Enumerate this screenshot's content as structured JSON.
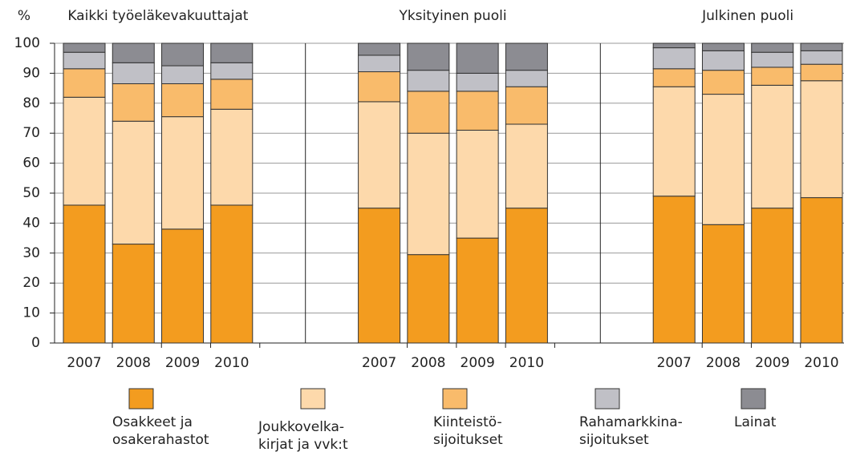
{
  "chart_data": {
    "type": "stacked_bar",
    "ylabel": "%",
    "group_titles": [
      "Kaikki työeläkevakuuttajat",
      "Yksityinen puoli",
      "Julkinen puoli"
    ],
    "categories": [
      "2007",
      "2008",
      "2009",
      "2010",
      null,
      null,
      "2007",
      "2008",
      "2009",
      "2010",
      null,
      null,
      "2007",
      "2008",
      "2009",
      "2010"
    ],
    "series": [
      {
        "name": "Osakkeet ja\nosakerahastot",
        "color": "#f39c1f",
        "values": [
          46,
          33,
          38,
          46,
          null,
          null,
          45,
          29.5,
          35,
          45,
          null,
          null,
          49,
          39.5,
          45,
          48.5
        ]
      },
      {
        "name": "Joukkovelka-\nkirjat ja vvk:t",
        "color": "#fdd9ab",
        "values": [
          36,
          41,
          37.5,
          32,
          null,
          null,
          35.5,
          40.5,
          36,
          28,
          null,
          null,
          36.5,
          43.5,
          41,
          39
        ]
      },
      {
        "name": "Kiinteistö-\nsijoitukset",
        "color": "#f9bb6b",
        "values": [
          9.5,
          12.5,
          11,
          10,
          null,
          null,
          10,
          14,
          13,
          12.5,
          null,
          null,
          6,
          8,
          6,
          5.5
        ]
      },
      {
        "name": "Rahamarkkina-\nsijoitukset",
        "color": "#c0c0c6",
        "values": [
          5.5,
          7,
          6,
          5.5,
          null,
          null,
          5.5,
          7,
          6,
          5.5,
          null,
          null,
          7,
          6.5,
          5,
          4.5
        ]
      },
      {
        "name": "Lainat",
        "color": "#8c8c92",
        "values": [
          3,
          6.5,
          7.5,
          6.5,
          null,
          null,
          4,
          9,
          10,
          9,
          null,
          null,
          1.5,
          2.5,
          3,
          2.5
        ]
      }
    ],
    "ylim": [
      0,
      100
    ],
    "yticks": [
      0,
      10,
      20,
      30,
      40,
      50,
      60,
      70,
      80,
      90,
      100
    ],
    "grid": true
  }
}
